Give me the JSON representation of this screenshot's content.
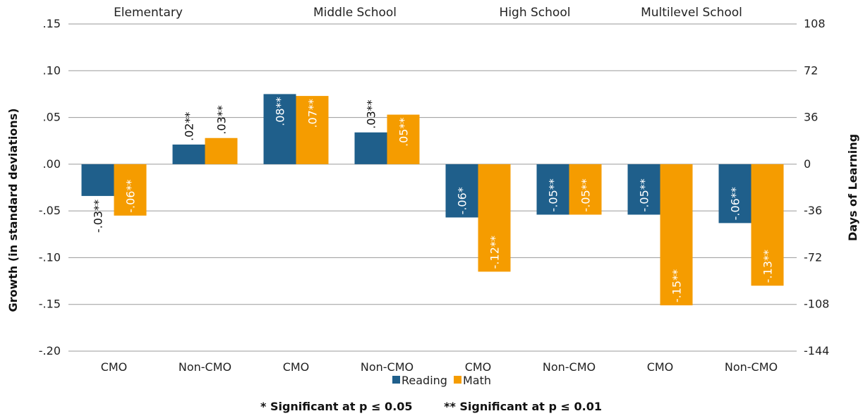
{
  "chart_data": {
    "type": "bar",
    "group_labels": [
      "Elementary",
      "Middle School",
      "High School",
      "Multilevel School"
    ],
    "categories": [
      "CMO",
      "Non-CMO",
      "CMO",
      "Non-CMO",
      "CMO",
      "Non-CMO",
      "CMO",
      "Non-CMO"
    ],
    "series": [
      {
        "name": "Reading",
        "color": "#1f5f8b",
        "values": [
          -0.034,
          0.021,
          0.075,
          0.034,
          -0.057,
          -0.054,
          -0.054,
          -0.063
        ],
        "labels": [
          "-.03**",
          ".02**",
          ".08**",
          ".03**",
          "-.06*",
          "-.05**",
          "-.05**",
          "-.06**"
        ]
      },
      {
        "name": "Math",
        "color": "#f59c00",
        "values": [
          -0.055,
          0.028,
          0.073,
          0.053,
          -0.115,
          -0.054,
          -0.151,
          -0.13
        ],
        "labels": [
          "-.06**",
          ".03**",
          ".07**",
          ".05**",
          "-.12**",
          "-.05**",
          "-.15**",
          "-.13**"
        ]
      }
    ],
    "ylabel": "Growth (in standard deviations)",
    "y2label": "Days of Learning",
    "ylim": [
      -0.2,
      0.15
    ],
    "yticks": [
      0.15,
      0.1,
      0.05,
      0.0,
      -0.05,
      -0.1,
      -0.15,
      -0.2
    ],
    "ytick_labels": [
      ".15",
      ".10",
      ".05",
      ".00",
      "-.05",
      "-.10",
      "-.15",
      "-.20"
    ],
    "y2tick_labels": [
      "108",
      "72",
      "36",
      "0",
      "-36",
      "-72",
      "-108",
      "-144"
    ],
    "grid": true,
    "legend_position": "bottom-center",
    "footnote": "* Significant at p ≤ 0.05        ** Significant at p ≤ 0.01"
  }
}
